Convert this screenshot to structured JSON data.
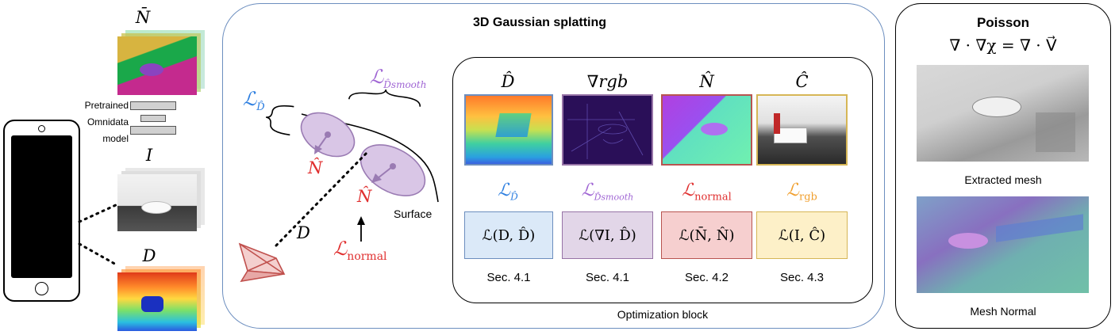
{
  "left": {
    "n_bar_label": "N̄",
    "model_label_lines": [
      "Pretrained",
      "Omnidata",
      "model"
    ],
    "i_label": "I",
    "d_label": "D"
  },
  "splatting": {
    "title": "3D Gaussian splatting",
    "loss_d_hat": "ℒ",
    "loss_d_hat_sub": "D̂",
    "loss_d_smooth": "ℒ",
    "loss_d_smooth_sub": "D̂smooth",
    "n_hat_1": "N̂",
    "n_hat_2": "N̂",
    "d_label": "D",
    "surface_label": "Surface",
    "loss_normal": "ℒ",
    "loss_normal_sub": "normal"
  },
  "optimization": {
    "caption": "Optimization block",
    "columns": [
      {
        "header": "D̂",
        "loss": "ℒ",
        "loss_sub": "D̂",
        "term": "ℒ(D, D̂)",
        "section": "Sec. 4.1",
        "loss_color": "#2e7fe0",
        "fill": "#dbe9f8",
        "border": "#6c8ebf"
      },
      {
        "header": "∇rgb",
        "loss": "ℒ",
        "loss_sub": "D̂smooth",
        "term": "ℒ(∇I, D̂)",
        "section": "Sec. 4.1",
        "loss_color": "#a066d4",
        "fill": "#e2d6e8",
        "border": "#9673a6"
      },
      {
        "header": "N̂",
        "loss": "ℒ",
        "loss_sub": "normal",
        "term": "ℒ(N̄, N̂)",
        "section": "Sec. 4.2",
        "loss_color": "#e03030",
        "fill": "#f6cfcf",
        "border": "#b85450"
      },
      {
        "header": "Ĉ",
        "loss": "ℒ",
        "loss_sub": "rgb",
        "term": "ℒ(I, Ĉ)",
        "section": "Sec. 4.3",
        "loss_color": "#f0a030",
        "fill": "#fdf0c8",
        "border": "#d6b656"
      }
    ]
  },
  "poisson": {
    "title": "Poisson",
    "equation": "∇ · ∇χ = ∇ · V⃗",
    "extracted_caption": "Extracted mesh",
    "normal_caption": "Mesh Normal"
  },
  "colors": {
    "blue": "#2e7fe0",
    "purple": "#a066d4",
    "red": "#e03030",
    "orange": "#f0a030",
    "panel_border": "#6c8ebf",
    "gaussian_fill": "#d9c6e6",
    "gaussian_stroke": "#9a7bb3"
  }
}
